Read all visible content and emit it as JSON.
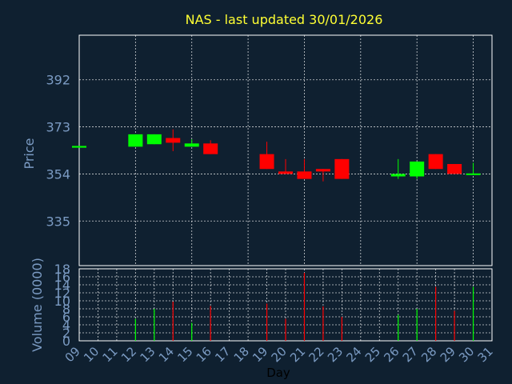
{
  "colors": {
    "background": "#0f2030",
    "title": "#ffff33",
    "axis_text": "#7b9bc3",
    "xlabel_text": "#000000",
    "grid": "#ffffff",
    "up": "#00ff00",
    "down": "#ff0000"
  },
  "chart_data": [
    {
      "type": "candlestick",
      "title": "NAS - last updated 30/01/2026",
      "ylabel": "Price",
      "ylim": [
        317,
        410
      ],
      "yticks": [
        "392",
        "373",
        "354",
        "335"
      ],
      "ytick_values": [
        392,
        373,
        354,
        335
      ],
      "grid": true,
      "candles": [
        {
          "day": "09",
          "open": 364.6,
          "close": 365.3,
          "high": 365.3,
          "low": 364.6
        },
        {
          "day": "12",
          "open": 365.0,
          "close": 370.0,
          "high": 370.0,
          "low": 365.0
        },
        {
          "day": "13",
          "open": 366.0,
          "close": 370.0,
          "high": 370.0,
          "low": 366.0
        },
        {
          "day": "14",
          "open": 368.5,
          "close": 366.6,
          "high": 372.0,
          "low": 363.2
        },
        {
          "day": "15",
          "open": 365.0,
          "close": 366.3,
          "high": 368.0,
          "low": 365.0
        },
        {
          "day": "16",
          "open": 366.3,
          "close": 362.0,
          "high": 367.6,
          "low": 362.0
        },
        {
          "day": "19",
          "open": 362.0,
          "close": 356.0,
          "high": 367.0,
          "low": 356.0
        },
        {
          "day": "20",
          "open": 355.0,
          "close": 354.0,
          "high": 360.0,
          "low": 354.0
        },
        {
          "day": "21",
          "open": 355.0,
          "close": 352.0,
          "high": 360.0,
          "low": 352.0
        },
        {
          "day": "22",
          "open": 356.0,
          "close": 355.0,
          "high": 356.0,
          "low": 351.0
        },
        {
          "day": "23",
          "open": 360.0,
          "close": 352.0,
          "high": 360.0,
          "low": 352.0
        },
        {
          "day": "26",
          "open": 353.0,
          "close": 354.0,
          "high": 360.0,
          "low": 352.0
        },
        {
          "day": "27",
          "open": 353.0,
          "close": 359.0,
          "high": 359.0,
          "low": 352.0
        },
        {
          "day": "28",
          "open": 362.0,
          "close": 356.0,
          "high": 362.0,
          "low": 356.0
        },
        {
          "day": "29",
          "open": 358.0,
          "close": 354.0,
          "high": 358.0,
          "low": 354.0
        },
        {
          "day": "30",
          "open": 353.7,
          "close": 354.2,
          "high": 358.5,
          "low": 353.7
        }
      ]
    },
    {
      "type": "bar",
      "ylabel": "Volume (0000)",
      "xlabel": "Day",
      "ylim": [
        0,
        18
      ],
      "yticks": [
        "0",
        "2",
        "4",
        "6",
        "8",
        "10",
        "12",
        "14",
        "16",
        "18"
      ],
      "ytick_values": [
        0,
        2,
        4,
        6,
        8,
        10,
        12,
        14,
        16,
        18
      ],
      "x_categories": [
        "09",
        "10",
        "11",
        "12",
        "13",
        "14",
        "15",
        "16",
        "17",
        "18",
        "19",
        "20",
        "21",
        "22",
        "23",
        "24",
        "25",
        "26",
        "27",
        "28",
        "29",
        "30",
        "31"
      ],
      "volumes": [
        {
          "day": "09",
          "value": 0,
          "direction": "up"
        },
        {
          "day": "12",
          "value": 5.5,
          "direction": "up"
        },
        {
          "day": "13",
          "value": 8,
          "direction": "up"
        },
        {
          "day": "14",
          "value": 9.8,
          "direction": "down"
        },
        {
          "day": "15",
          "value": 4.5,
          "direction": "up"
        },
        {
          "day": "16",
          "value": 8.7,
          "direction": "down"
        },
        {
          "day": "19",
          "value": 9.3,
          "direction": "down"
        },
        {
          "day": "20",
          "value": 5.5,
          "direction": "down"
        },
        {
          "day": "21",
          "value": 17,
          "direction": "down"
        },
        {
          "day": "22",
          "value": 8.6,
          "direction": "down"
        },
        {
          "day": "23",
          "value": 6,
          "direction": "down"
        },
        {
          "day": "26",
          "value": 6.5,
          "direction": "up"
        },
        {
          "day": "27",
          "value": 8,
          "direction": "up"
        },
        {
          "day": "28",
          "value": 13.5,
          "direction": "down"
        },
        {
          "day": "29",
          "value": 7.5,
          "direction": "down"
        },
        {
          "day": "30",
          "value": 13.5,
          "direction": "up"
        }
      ]
    }
  ]
}
